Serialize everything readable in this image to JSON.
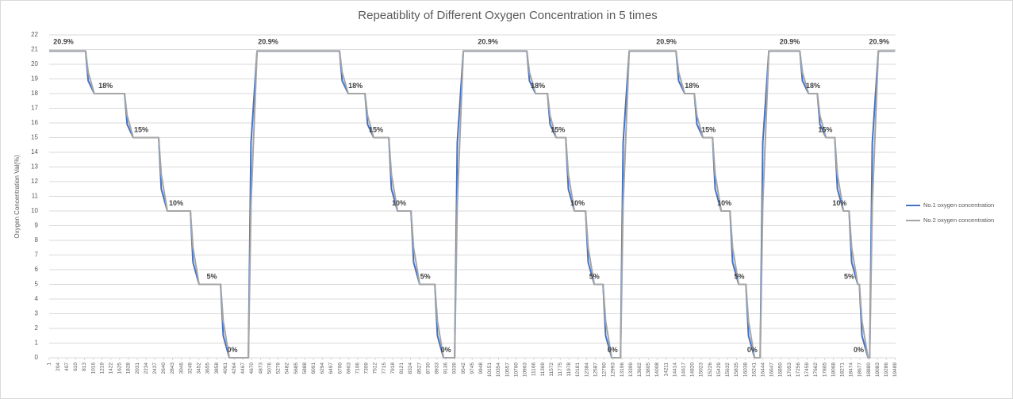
{
  "chart_data": {
    "type": "line",
    "title": "Repeatiblity of Different Oxygen Concentration in 5 times",
    "y_label": "Oxygen Concentration Val(%)",
    "x": [
      1,
      840,
      900,
      1040,
      1737,
      1797,
      1937,
      2523,
      2583,
      2723,
      3254,
      3314,
      3454,
      3950,
      4010,
      4150,
      4590,
      4650,
      4790,
      6690,
      6750,
      6890,
      7276,
      7336,
      7476,
      7825,
      7885,
      8025,
      8336,
      8396,
      8536,
      8885,
      8945,
      9085,
      9342,
      9402,
      9542,
      11005,
      11065,
      11205,
      11480,
      11540,
      11680,
      11901,
      11961,
      12101,
      12358,
      12418,
      12558,
      12760,
      12820,
      12960,
      13163,
      13223,
      13363,
      14442,
      14502,
      14642,
      14863,
      14923,
      15063,
      15283,
      15343,
      15483,
      15685,
      15745,
      15885,
      16051,
      16111,
      16251,
      16380,
      16440,
      16580,
      17294,
      17354,
      17494,
      17697,
      17757,
      17897,
      18099,
      18159,
      18299,
      18428,
      18488,
      18628,
      18665,
      18725,
      18865,
      18903,
      18963,
      19103,
      19489
    ],
    "series": [
      {
        "name": "No.1 oxygen concentration",
        "color": "#4472c4",
        "values": [
          20.9,
          20.9,
          18.87,
          18,
          18,
          15.9,
          15,
          15,
          11.5,
          10,
          10,
          6.5,
          5,
          5,
          1.5,
          0,
          0,
          14.63,
          20.9,
          20.9,
          18.87,
          18,
          18,
          15.9,
          15,
          15,
          11.5,
          10,
          10,
          6.5,
          5,
          5,
          1.5,
          0,
          0,
          14.63,
          20.9,
          20.9,
          18.87,
          18,
          18,
          15.9,
          15,
          15,
          11.5,
          10,
          10,
          6.5,
          5,
          5,
          1.5,
          0,
          0,
          14.63,
          20.9,
          20.9,
          18.87,
          18,
          18,
          15.9,
          15,
          15,
          11.5,
          10,
          10,
          6.5,
          5,
          5,
          1.5,
          0,
          0,
          14.63,
          20.9,
          20.9,
          18.87,
          18,
          18,
          15.9,
          15,
          15,
          11.5,
          10,
          10,
          6.5,
          5,
          5,
          1.5,
          0,
          0,
          14.63,
          20.9,
          20.9
        ]
      },
      {
        "name": "No.2 oxygen concentration",
        "color": "#a5a5a5",
        "values": [
          20.9,
          20.9,
          19.45,
          18,
          18,
          16.5,
          15,
          15,
          12.5,
          10,
          10,
          7.5,
          5,
          5,
          2.5,
          0,
          0,
          10.45,
          20.9,
          20.9,
          19.45,
          18,
          18,
          16.5,
          15,
          15,
          12.5,
          10,
          10,
          7.5,
          5,
          5,
          2.5,
          0,
          0,
          10.45,
          20.9,
          20.9,
          19.45,
          18,
          18,
          16.5,
          15,
          15,
          12.5,
          10,
          10,
          7.5,
          5,
          5,
          2.5,
          0,
          0,
          10.45,
          20.9,
          20.9,
          19.45,
          18,
          18,
          16.5,
          15,
          15,
          12.5,
          10,
          10,
          7.5,
          5,
          5,
          2.5,
          0,
          0,
          10.45,
          20.9,
          20.9,
          19.45,
          18,
          18,
          16.5,
          15,
          15,
          12.5,
          10,
          10,
          7.5,
          5,
          5,
          2.5,
          0,
          0,
          10.45,
          20.9,
          20.9
        ]
      }
    ],
    "xlim": [
      1,
      19500
    ],
    "ylim": [
      0,
      22
    ],
    "xticks": [
      1,
      204,
      407,
      610,
      813,
      1016,
      1219,
      1422,
      1625,
      1828,
      2031,
      2234,
      2437,
      2640,
      2843,
      3046,
      3249,
      3452,
      3655,
      3858,
      4061,
      4264,
      4467,
      4670,
      4873,
      5076,
      5279,
      5482,
      5685,
      5888,
      6091,
      6294,
      6497,
      6700,
      6903,
      7106,
      7309,
      7512,
      7715,
      7918,
      8121,
      8324,
      8527,
      8730,
      8933,
      9136,
      9339,
      9542,
      9745,
      9948,
      10151,
      10354,
      10557,
      10760,
      10963,
      11166,
      11369,
      11572,
      11775,
      11978,
      12181,
      12384,
      12587,
      12790,
      12993,
      13196,
      13399,
      13602,
      13805,
      14008,
      14211,
      14414,
      14617,
      14820,
      15023,
      15226,
      15429,
      15632,
      15835,
      16038,
      16241,
      16444,
      16647,
      16850,
      17053,
      17256,
      17459,
      17662,
      17865,
      18068,
      18271,
      18474,
      18677,
      18880,
      19083,
      19286,
      19489
    ],
    "yticks": [
      0,
      1,
      2,
      3,
      4,
      5,
      6,
      7,
      8,
      9,
      10,
      11,
      12,
      13,
      14,
      15,
      16,
      17,
      18,
      19,
      20,
      21,
      22
    ],
    "grid": true,
    "legend": "right",
    "annotations": [
      {
        "text": "20.9%",
        "x": 330,
        "y": 21.5
      },
      {
        "text": "20.9%",
        "x": 5045,
        "y": 21.5
      },
      {
        "text": "20.9%",
        "x": 10110,
        "y": 21.5
      },
      {
        "text": "20.9%",
        "x": 14220,
        "y": 21.5
      },
      {
        "text": "20.9%",
        "x": 17060,
        "y": 21.5
      },
      {
        "text": "20.9%",
        "x": 19120,
        "y": 21.5
      },
      {
        "text": "18%",
        "x": 1300,
        "y": 18.5
      },
      {
        "text": "18%",
        "x": 7057,
        "y": 18.5
      },
      {
        "text": "18%",
        "x": 11260,
        "y": 18.5
      },
      {
        "text": "18%",
        "x": 14808,
        "y": 18.5
      },
      {
        "text": "18%",
        "x": 17600,
        "y": 18.5
      },
      {
        "text": "15%",
        "x": 2120,
        "y": 15.5
      },
      {
        "text": "15%",
        "x": 7530,
        "y": 15.5
      },
      {
        "text": "15%",
        "x": 11720,
        "y": 15.5
      },
      {
        "text": "15%",
        "x": 15190,
        "y": 15.5
      },
      {
        "text": "15%",
        "x": 17880,
        "y": 15.5
      },
      {
        "text": "10%",
        "x": 2925,
        "y": 10.5
      },
      {
        "text": "10%",
        "x": 8060,
        "y": 10.5
      },
      {
        "text": "10%",
        "x": 12175,
        "y": 10.5
      },
      {
        "text": "10%",
        "x": 15555,
        "y": 10.5
      },
      {
        "text": "10%",
        "x": 18210,
        "y": 10.5
      },
      {
        "text": "5%",
        "x": 3748,
        "y": 5.5
      },
      {
        "text": "5%",
        "x": 8665,
        "y": 5.5
      },
      {
        "text": "5%",
        "x": 12560,
        "y": 5.5
      },
      {
        "text": "5%",
        "x": 15900,
        "y": 5.5
      },
      {
        "text": "5%",
        "x": 18430,
        "y": 5.5
      },
      {
        "text": "0%",
        "x": 4223,
        "y": 0.5
      },
      {
        "text": "0%",
        "x": 9140,
        "y": 0.5
      },
      {
        "text": "0%",
        "x": 12980,
        "y": 0.5
      },
      {
        "text": "0%",
        "x": 16200,
        "y": 0.5
      },
      {
        "text": "0%",
        "x": 18650,
        "y": 0.5
      }
    ]
  }
}
